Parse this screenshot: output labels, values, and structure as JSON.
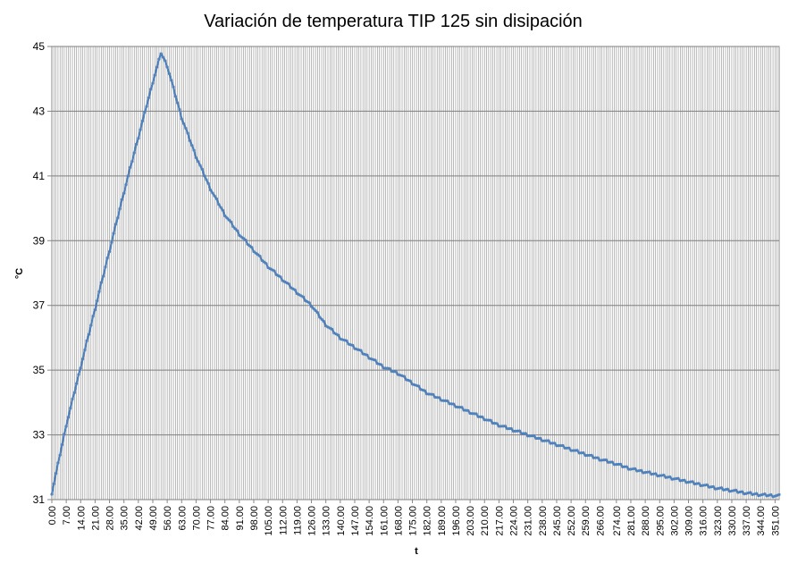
{
  "chart_data": {
    "type": "line",
    "title": "Variación de temperatura TIP 125 sin disipación",
    "xlabel": "t",
    "ylabel": "°C",
    "ylim": [
      31,
      45
    ],
    "yticks": [
      "31",
      "33",
      "35",
      "37",
      "39",
      "41",
      "43",
      "45"
    ],
    "xlim": [
      0,
      353
    ],
    "xticks": [
      "0.00",
      "7.00",
      "14.00",
      "21.00",
      "28.00",
      "35.00",
      "42.00",
      "49.00",
      "56.00",
      "63.00",
      "70.00",
      "77.00",
      "84.00",
      "91.00",
      "98.00",
      "105.00",
      "112.00",
      "119.00",
      "126.00",
      "133.00",
      "140.00",
      "147.00",
      "154.00",
      "161.00",
      "168.00",
      "175.00",
      "182.00",
      "189.00",
      "196.00",
      "203.00",
      "210.00",
      "217.00",
      "224.00",
      "231.00",
      "238.00",
      "245.00",
      "252.00",
      "259.00",
      "266.00",
      "274.00",
      "281.00",
      "288.00",
      "295.00",
      "302.00",
      "309.00",
      "316.00",
      "323.00",
      "330.00",
      "337.00",
      "344.00",
      "351.00"
    ],
    "grid": true,
    "legend": "none",
    "series_color": "#4f81bd",
    "series": [
      {
        "x": [
          0,
          3,
          7,
          14,
          21,
          28,
          35,
          42,
          49,
          53,
          56,
          63,
          70,
          77,
          84,
          91,
          98,
          105,
          112,
          119,
          126,
          133,
          140,
          147,
          154,
          161,
          168,
          175,
          182,
          189,
          196,
          203,
          210,
          217,
          224,
          231,
          238,
          245,
          252,
          259,
          266,
          274,
          281,
          288,
          295,
          302,
          309,
          316,
          323,
          330,
          337,
          344,
          351,
          353
        ],
        "values": [
          31.2,
          32.1,
          33.3,
          35.1,
          36.9,
          38.7,
          40.5,
          42.2,
          43.9,
          44.8,
          44.4,
          42.8,
          41.6,
          40.6,
          39.8,
          39.2,
          38.7,
          38.2,
          37.8,
          37.4,
          37.0,
          36.4,
          36.0,
          35.7,
          35.4,
          35.1,
          34.9,
          34.6,
          34.3,
          34.1,
          33.9,
          33.7,
          33.5,
          33.3,
          33.15,
          33.0,
          32.85,
          32.7,
          32.55,
          32.4,
          32.25,
          32.1,
          31.95,
          31.85,
          31.75,
          31.65,
          31.55,
          31.45,
          31.35,
          31.28,
          31.2,
          31.15,
          31.12,
          31.12
        ]
      }
    ]
  }
}
